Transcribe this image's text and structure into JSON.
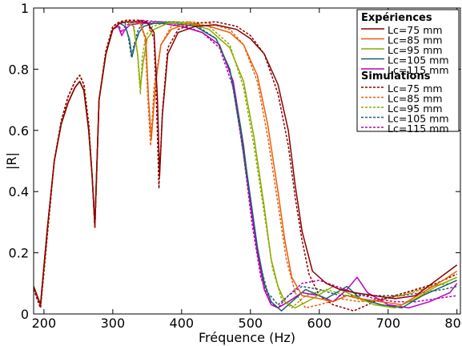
{
  "chart_data": {
    "type": "line",
    "title": "",
    "xlabel": "Fréquence (Hz)",
    "ylabel": "|R|",
    "xlim": [
      185,
      805
    ],
    "ylim": [
      0,
      1
    ],
    "xticks": [
      200,
      300,
      400,
      500,
      600,
      700,
      800
    ],
    "yticks": [
      0,
      0.2,
      0.4,
      0.6,
      0.8,
      1
    ],
    "xtick_labels": [
      "200",
      "300",
      "400",
      "500",
      "600",
      "700",
      "800"
    ],
    "ytick_labels": [
      "0",
      "0.2",
      "0.4",
      "0.6",
      "0.8",
      "1"
    ],
    "legend": {
      "placement": "top-right",
      "group1_title": "Expériences",
      "group2_title": "Simulations"
    },
    "series": [
      {
        "name": "Lc=75 mm",
        "group": "Expériences",
        "style": "solid",
        "color": "#8b0000",
        "x": [
          185,
          195,
          205,
          215,
          225,
          235,
          245,
          252,
          258,
          265,
          270,
          274,
          280,
          290,
          300,
          310,
          320,
          330,
          340,
          350,
          360,
          365,
          368,
          372,
          380,
          395,
          420,
          450,
          480,
          500,
          520,
          540,
          555,
          565,
          575,
          590,
          610,
          630,
          650,
          680,
          710,
          740,
          770,
          800
        ],
        "y": [
          0.09,
          0.03,
          0.28,
          0.5,
          0.62,
          0.69,
          0.74,
          0.76,
          0.73,
          0.6,
          0.45,
          0.29,
          0.7,
          0.85,
          0.93,
          0.95,
          0.955,
          0.955,
          0.955,
          0.953,
          0.92,
          0.7,
          0.45,
          0.65,
          0.85,
          0.92,
          0.94,
          0.945,
          0.93,
          0.9,
          0.85,
          0.75,
          0.6,
          0.42,
          0.27,
          0.14,
          0.1,
          0.08,
          0.07,
          0.06,
          0.05,
          0.06,
          0.11,
          0.16
        ]
      },
      {
        "name": "Lc=85 mm",
        "group": "Expériences",
        "style": "solid",
        "color": "#e8600a",
        "x": [
          185,
          195,
          205,
          215,
          225,
          235,
          245,
          252,
          258,
          265,
          270,
          274,
          280,
          290,
          300,
          310,
          320,
          330,
          340,
          348,
          352,
          356,
          362,
          370,
          385,
          410,
          440,
          470,
          490,
          510,
          525,
          540,
          550,
          560,
          575,
          600,
          620,
          640,
          660,
          690,
          720,
          750,
          780,
          800
        ],
        "y": [
          0.09,
          0.03,
          0.28,
          0.5,
          0.62,
          0.69,
          0.74,
          0.76,
          0.73,
          0.6,
          0.45,
          0.29,
          0.7,
          0.85,
          0.93,
          0.95,
          0.955,
          0.955,
          0.95,
          0.9,
          0.7,
          0.57,
          0.75,
          0.88,
          0.93,
          0.95,
          0.94,
          0.92,
          0.88,
          0.78,
          0.62,
          0.4,
          0.24,
          0.12,
          0.06,
          0.05,
          0.04,
          0.06,
          0.05,
          0.04,
          0.03,
          0.07,
          0.11,
          0.14
        ]
      },
      {
        "name": "Lc=95 mm",
        "group": "Expériences",
        "style": "solid",
        "color": "#8caa00",
        "x": [
          185,
          195,
          205,
          215,
          225,
          235,
          245,
          252,
          258,
          265,
          270,
          274,
          280,
          290,
          300,
          310,
          320,
          330,
          336,
          340,
          344,
          350,
          360,
          380,
          410,
          440,
          470,
          490,
          505,
          520,
          530,
          540,
          550,
          565,
          590,
          620,
          650,
          680,
          710,
          740,
          770,
          800
        ],
        "y": [
          0.09,
          0.03,
          0.28,
          0.5,
          0.62,
          0.69,
          0.74,
          0.76,
          0.73,
          0.6,
          0.45,
          0.29,
          0.7,
          0.85,
          0.93,
          0.95,
          0.955,
          0.94,
          0.85,
          0.74,
          0.82,
          0.9,
          0.93,
          0.95,
          0.95,
          0.93,
          0.87,
          0.76,
          0.58,
          0.35,
          0.18,
          0.09,
          0.04,
          0.02,
          0.05,
          0.09,
          0.06,
          0.03,
          0.02,
          0.05,
          0.09,
          0.12
        ]
      },
      {
        "name": "Lc=105 mm",
        "group": "Expériences",
        "style": "solid",
        "color": "#1f5f6b",
        "x": [
          185,
          195,
          205,
          215,
          225,
          235,
          245,
          252,
          258,
          265,
          270,
          274,
          280,
          290,
          300,
          310,
          318,
          324,
          328,
          332,
          338,
          345,
          360,
          390,
          420,
          450,
          470,
          485,
          500,
          510,
          520,
          530,
          545,
          560,
          580,
          610,
          640,
          660,
          690,
          720,
          750,
          780,
          800
        ],
        "y": [
          0.09,
          0.03,
          0.28,
          0.5,
          0.62,
          0.69,
          0.74,
          0.76,
          0.73,
          0.6,
          0.45,
          0.29,
          0.7,
          0.85,
          0.93,
          0.95,
          0.94,
          0.9,
          0.84,
          0.88,
          0.92,
          0.94,
          0.95,
          0.95,
          0.94,
          0.9,
          0.8,
          0.62,
          0.38,
          0.22,
          0.1,
          0.04,
          0.01,
          0.04,
          0.08,
          0.05,
          0.09,
          0.05,
          0.03,
          0.02,
          0.06,
          0.09,
          0.11
        ]
      },
      {
        "name": "Lc=115 mm",
        "group": "Expériences",
        "style": "solid",
        "color": "#bb00bb",
        "x": [
          185,
          195,
          205,
          215,
          225,
          235,
          245,
          252,
          258,
          265,
          270,
          274,
          280,
          290,
          300,
          308,
          313,
          318,
          325,
          340,
          370,
          400,
          430,
          455,
          475,
          490,
          500,
          510,
          520,
          530,
          540,
          555,
          575,
          600,
          620,
          640,
          655,
          670,
          700,
          730,
          760,
          790,
          800
        ],
        "y": [
          0.09,
          0.03,
          0.28,
          0.5,
          0.62,
          0.69,
          0.74,
          0.76,
          0.73,
          0.6,
          0.45,
          0.29,
          0.7,
          0.85,
          0.93,
          0.94,
          0.91,
          0.93,
          0.945,
          0.95,
          0.95,
          0.94,
          0.92,
          0.88,
          0.76,
          0.55,
          0.36,
          0.2,
          0.08,
          0.03,
          0.02,
          0.04,
          0.07,
          0.06,
          0.04,
          0.08,
          0.12,
          0.07,
          0.03,
          0.02,
          0.04,
          0.07,
          0.1
        ]
      },
      {
        "name": "Lc=75 mm",
        "group": "Simulations",
        "style": "dashed",
        "color": "#8b0000",
        "x": [
          185,
          195,
          205,
          215,
          225,
          235,
          245,
          252,
          258,
          265,
          270,
          274,
          280,
          290,
          300,
          310,
          320,
          330,
          340,
          350,
          360,
          364,
          367,
          372,
          380,
          395,
          420,
          450,
          480,
          500,
          520,
          540,
          555,
          565,
          575,
          585,
          600,
          620,
          650,
          680,
          710,
          740,
          770,
          800
        ],
        "y": [
          0.08,
          0.02,
          0.26,
          0.5,
          0.63,
          0.71,
          0.76,
          0.78,
          0.75,
          0.62,
          0.45,
          0.28,
          0.7,
          0.86,
          0.94,
          0.955,
          0.96,
          0.96,
          0.96,
          0.955,
          0.9,
          0.65,
          0.41,
          0.66,
          0.87,
          0.93,
          0.95,
          0.955,
          0.94,
          0.91,
          0.85,
          0.72,
          0.55,
          0.38,
          0.24,
          0.13,
          0.06,
          0.03,
          0.01,
          0.04,
          0.06,
          0.08,
          0.1,
          0.13
        ]
      },
      {
        "name": "Lc=85 mm",
        "group": "Simulations",
        "style": "dashed",
        "color": "#e8600a",
        "x": [
          185,
          195,
          205,
          215,
          225,
          235,
          245,
          252,
          258,
          265,
          270,
          274,
          280,
          290,
          300,
          310,
          320,
          330,
          340,
          347,
          351,
          355,
          360,
          370,
          385,
          410,
          440,
          470,
          490,
          510,
          525,
          540,
          552,
          565,
          580,
          600,
          630,
          660,
          690,
          720,
          750,
          780,
          800
        ],
        "y": [
          0.08,
          0.02,
          0.26,
          0.5,
          0.63,
          0.71,
          0.76,
          0.78,
          0.75,
          0.62,
          0.45,
          0.28,
          0.7,
          0.86,
          0.94,
          0.955,
          0.96,
          0.96,
          0.95,
          0.9,
          0.7,
          0.55,
          0.74,
          0.88,
          0.94,
          0.955,
          0.95,
          0.93,
          0.88,
          0.76,
          0.58,
          0.36,
          0.18,
          0.07,
          0.02,
          0.03,
          0.05,
          0.04,
          0.05,
          0.06,
          0.08,
          0.1,
          0.12
        ]
      },
      {
        "name": "Lc=95 mm",
        "group": "Simulations",
        "style": "dashed",
        "color": "#8caa00",
        "x": [
          185,
          195,
          205,
          215,
          225,
          235,
          245,
          252,
          258,
          265,
          270,
          274,
          280,
          290,
          300,
          310,
          320,
          330,
          336,
          340,
          343,
          348,
          358,
          380,
          410,
          440,
          470,
          490,
          505,
          520,
          532,
          545,
          560,
          580,
          610,
          640,
          670,
          700,
          730,
          760,
          790,
          800
        ],
        "y": [
          0.08,
          0.02,
          0.26,
          0.5,
          0.63,
          0.71,
          0.76,
          0.78,
          0.75,
          0.62,
          0.45,
          0.28,
          0.7,
          0.86,
          0.94,
          0.955,
          0.96,
          0.95,
          0.85,
          0.72,
          0.84,
          0.91,
          0.94,
          0.955,
          0.955,
          0.94,
          0.88,
          0.74,
          0.55,
          0.33,
          0.15,
          0.05,
          0.02,
          0.06,
          0.08,
          0.06,
          0.04,
          0.05,
          0.07,
          0.09,
          0.1,
          0.11
        ]
      },
      {
        "name": "Lc=105 mm",
        "group": "Simulations",
        "style": "dashed",
        "color": "#1f5f6b",
        "x": [
          185,
          195,
          205,
          215,
          225,
          235,
          245,
          252,
          258,
          265,
          270,
          274,
          280,
          290,
          300,
          310,
          318,
          323,
          327,
          331,
          337,
          345,
          360,
          390,
          420,
          450,
          470,
          485,
          500,
          512,
          525,
          540,
          555,
          575,
          600,
          630,
          660,
          690,
          720,
          750,
          780,
          800
        ],
        "y": [
          0.08,
          0.02,
          0.26,
          0.5,
          0.63,
          0.71,
          0.76,
          0.78,
          0.75,
          0.62,
          0.45,
          0.28,
          0.7,
          0.86,
          0.94,
          0.955,
          0.95,
          0.9,
          0.84,
          0.88,
          0.93,
          0.95,
          0.955,
          0.955,
          0.945,
          0.9,
          0.8,
          0.6,
          0.36,
          0.18,
          0.07,
          0.03,
          0.06,
          0.09,
          0.08,
          0.06,
          0.06,
          0.06,
          0.06,
          0.07,
          0.08,
          0.09
        ]
      },
      {
        "name": "Lc=115 mm",
        "group": "Simulations",
        "style": "dashed",
        "color": "#bb00bb",
        "x": [
          185,
          195,
          205,
          215,
          225,
          235,
          245,
          252,
          258,
          265,
          270,
          274,
          280,
          290,
          300,
          308,
          313,
          318,
          325,
          340,
          370,
          400,
          430,
          455,
          475,
          490,
          502,
          515,
          528,
          540,
          555,
          575,
          600,
          625,
          650,
          680,
          710,
          740,
          770,
          800
        ],
        "y": [
          0.08,
          0.02,
          0.26,
          0.5,
          0.63,
          0.71,
          0.76,
          0.78,
          0.75,
          0.62,
          0.45,
          0.28,
          0.7,
          0.86,
          0.94,
          0.95,
          0.92,
          0.94,
          0.95,
          0.96,
          0.955,
          0.945,
          0.92,
          0.87,
          0.74,
          0.52,
          0.3,
          0.12,
          0.04,
          0.02,
          0.06,
          0.1,
          0.11,
          0.09,
          0.07,
          0.05,
          0.04,
          0.04,
          0.05,
          0.06
        ]
      }
    ]
  }
}
